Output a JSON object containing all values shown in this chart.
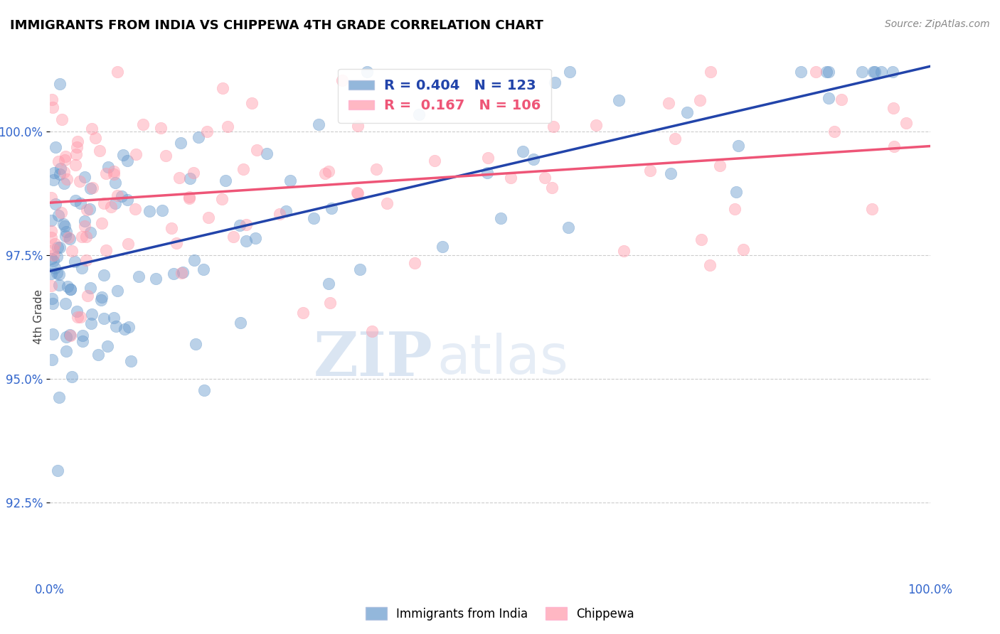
{
  "title": "IMMIGRANTS FROM INDIA VS CHIPPEWA 4TH GRADE CORRELATION CHART",
  "source": "Source: ZipAtlas.com",
  "ylabel": "4th Grade",
  "y_ticks": [
    92.5,
    95.0,
    97.5,
    100.0
  ],
  "y_tick_labels": [
    "92.5%",
    "95.0%",
    "97.5%",
    "100.0%"
  ],
  "x_range": [
    0.0,
    100.0
  ],
  "y_range": [
    91.0,
    101.5
  ],
  "blue_R": 0.404,
  "blue_N": 123,
  "pink_R": 0.167,
  "pink_N": 106,
  "blue_color": "#6699CC",
  "pink_color": "#FF99AA",
  "blue_line_color": "#2244AA",
  "pink_line_color": "#EE5577",
  "legend_label_blue": "Immigrants from India",
  "legend_label_pink": "Chippewa",
  "watermark_zip": "ZIP",
  "watermark_atlas": "atlas",
  "background_color": "#FFFFFF"
}
